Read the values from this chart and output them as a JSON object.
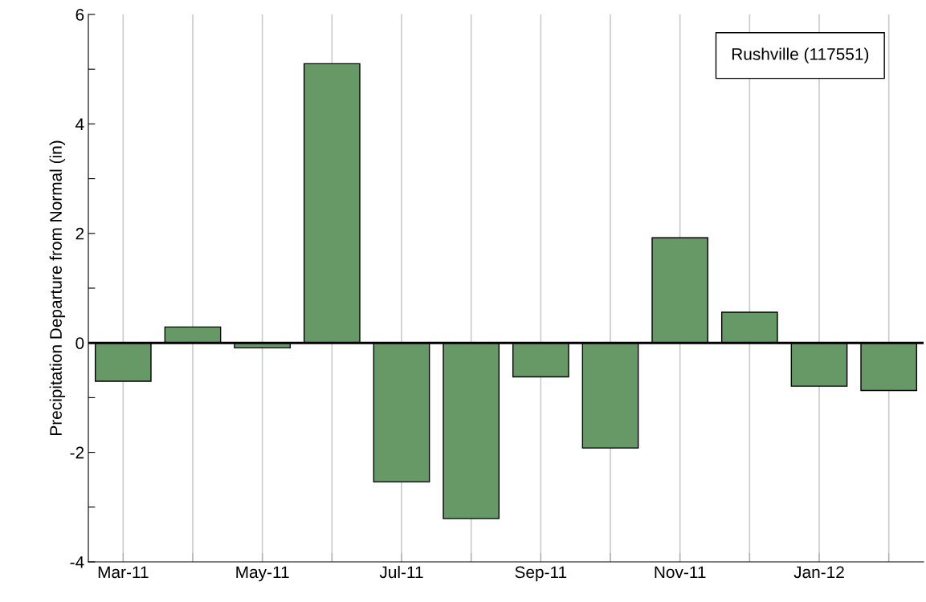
{
  "chart_data": {
    "type": "bar",
    "ylabel": "Precipitation Departure from Normal (in)",
    "categories": [
      "Mar-11",
      null,
      "May-11",
      null,
      "Jul-11",
      null,
      "Sep-11",
      null,
      "Nov-11",
      null,
      "Jan-12",
      null
    ],
    "values": [
      -0.7,
      0.29,
      -0.09,
      5.1,
      -2.54,
      -3.21,
      -0.62,
      -1.92,
      1.92,
      0.56,
      -0.79,
      -0.87
    ],
    "color": "#669966",
    "ylim": [
      -4,
      6
    ],
    "yticks": [
      -4,
      {
        "value": -3,
        "label": null
      },
      -2,
      {
        "value": -1,
        "label": null
      },
      0,
      {
        "value": 1,
        "label": null
      },
      2,
      {
        "value": 3,
        "label": null
      },
      4,
      {
        "value": 5,
        "label": null
      },
      6
    ],
    "grid": "x",
    "ref_lines": [
      {
        "axis": "y",
        "value": 0,
        "color": "#000000"
      }
    ],
    "annotations": [
      "Rushville (117551)"
    ]
  }
}
